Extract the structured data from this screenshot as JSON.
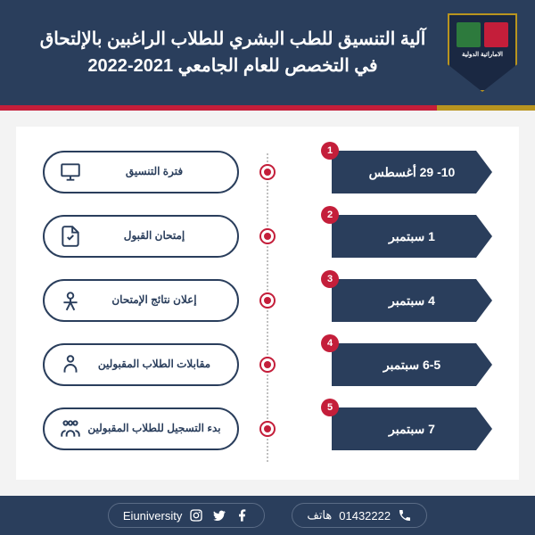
{
  "header": {
    "title": "آلية التنسيق للطب البشري للطلاب الراغبين بالإلتحاق في التخصص للعام الجامعي 2021-2022",
    "logo_text": "الاماراتية الدولية"
  },
  "colors": {
    "primary": "#2a3e5c",
    "accent": "#c41e3a",
    "gold": "#b8941f",
    "bg": "#f3f3f3"
  },
  "steps": [
    {
      "num": "1",
      "date": "10- 29 أغسطس",
      "desc": "فترة التنسيق",
      "icon": "computer"
    },
    {
      "num": "2",
      "date": "1 سبتمبر",
      "desc": "إمتحان القبول",
      "icon": "exam"
    },
    {
      "num": "3",
      "date": "4 سبتمبر",
      "desc": "إعلان نتائج الإمتحان",
      "icon": "results"
    },
    {
      "num": "4",
      "date": "6-5 سبتمبر",
      "desc": "مقابلات الطلاب المقبولين",
      "icon": "interview"
    },
    {
      "num": "5",
      "date": "7 سبتمبر",
      "desc": "بدء التسجيل للطلاب المقبولين",
      "icon": "register"
    }
  ],
  "footer": {
    "phone_label": "هاتف",
    "phone": "01432222",
    "handle": "Eiuniversity"
  }
}
